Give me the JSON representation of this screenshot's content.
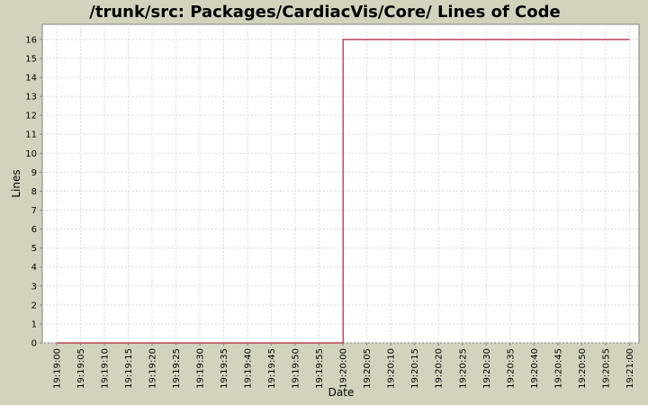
{
  "chart_data": {
    "type": "line",
    "title": "/trunk/src: Packages/CardiacVis/Core/ Lines of Code",
    "xlabel": "Date",
    "ylabel": "Lines",
    "x_tick_labels": [
      "19:19:00",
      "19:19:05",
      "19:19:10",
      "19:19:15",
      "19:19:20",
      "19:19:25",
      "19:19:30",
      "19:19:35",
      "19:19:40",
      "19:19:45",
      "19:19:50",
      "19:19:55",
      "19:20:00",
      "19:20:05",
      "19:20:10",
      "19:20:15",
      "19:20:20",
      "19:20:25",
      "19:20:30",
      "19:20:35",
      "19:20:40",
      "19:20:45",
      "19:20:50",
      "19:20:55",
      "19:21:00"
    ],
    "y_ticks": [
      0,
      1,
      2,
      3,
      4,
      5,
      6,
      7,
      8,
      9,
      10,
      11,
      12,
      13,
      14,
      15,
      16
    ],
    "ylim": [
      0,
      16.8
    ],
    "xlim": [
      "19:18:57",
      "19:21:02"
    ],
    "step": true,
    "grid": true,
    "series": [
      {
        "color": "#b0203c",
        "points": [
          {
            "x": "19:19:00",
            "y": 0
          },
          {
            "x": "19:20:00",
            "y": 0
          },
          {
            "x": "19:20:00",
            "y": 16
          },
          {
            "x": "19:21:00",
            "y": 16
          }
        ]
      }
    ]
  }
}
